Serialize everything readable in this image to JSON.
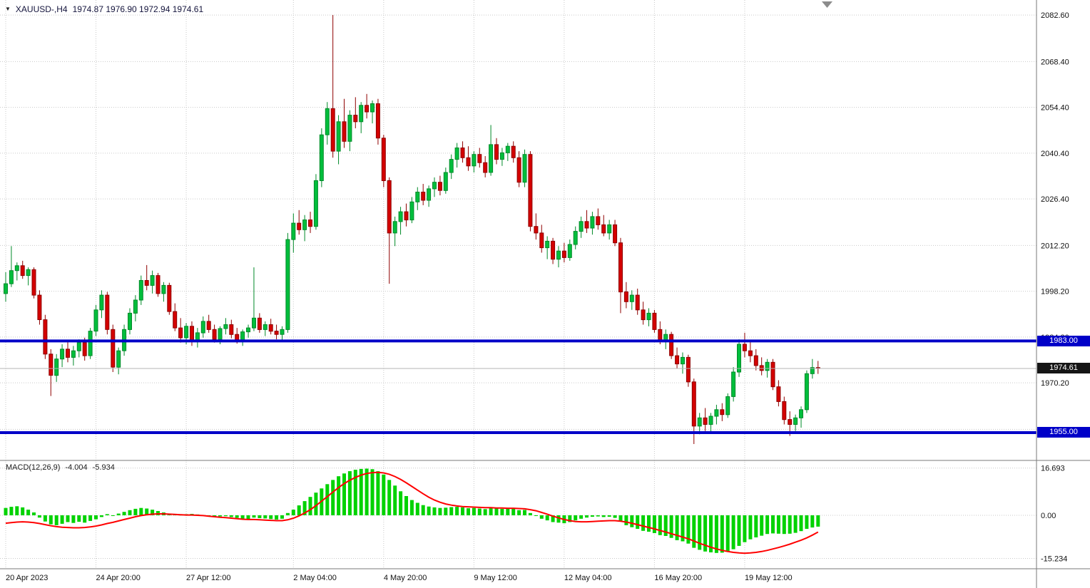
{
  "header": {
    "symbol_period": "XAUUSD-,H4",
    "ohlc_values": "1974.87 1976.90 1972.94 1974.61"
  },
  "macd_panel": {
    "title": "MACD(12,26,9)",
    "main_value": "-4.004",
    "signal_value": "-5.934"
  },
  "levels": {
    "resistance": {
      "label": "1983.00",
      "value": 1983.0
    },
    "last_price": {
      "label": "1974.61",
      "value": 1974.61
    },
    "support": {
      "label": "1955.00",
      "value": 1955.0
    }
  },
  "colors": {
    "bull": "#00BE3C",
    "bull_border": "#008A28",
    "bear": "#D40000",
    "bear_border": "#8F0000",
    "grid": "#C9C9C9",
    "level_line": "#0000C8",
    "macd_histogram": "#00D200",
    "macd_signal": "#FF0000",
    "last_price_line": "#B4B4B4"
  },
  "chart_data": [
    {
      "type": "candlestick",
      "title": "XAUUSD- H4",
      "ylim": [
        1946.5,
        2087.2
      ],
      "price_gridlines": [
        "2082.60",
        "2068.40",
        "2054.40",
        "2040.40",
        "2026.40",
        "2012.20",
        "1998.20",
        "1984.20",
        "1970.20",
        "1956.00"
      ],
      "time_labels": [
        {
          "i": 0,
          "label": "20 Apr 2023"
        },
        {
          "i": 16,
          "label": "24 Apr 20:00"
        },
        {
          "i": 32,
          "label": "27 Apr 12:00"
        },
        {
          "i": 51,
          "label": "2 May 04:00"
        },
        {
          "i": 67,
          "label": "4 May 20:00"
        },
        {
          "i": 83,
          "label": "9 May 12:00"
        },
        {
          "i": 99,
          "label": "12 May 04:00"
        },
        {
          "i": 115,
          "label": "16 May 20:00"
        },
        {
          "i": 131,
          "label": "19 May 12:00"
        }
      ],
      "hlines": [
        {
          "value": 1983.0,
          "label": "1983.00"
        },
        {
          "value": 1955.0,
          "label": "1955.00"
        }
      ],
      "last_price": 1974.61,
      "candles": [
        [
          1997.5,
          2004,
          1995,
          2000.5
        ],
        [
          2000.5,
          2012,
          1999.5,
          2004.5
        ],
        [
          2004.5,
          2007,
          2001.5,
          2006
        ],
        [
          2006,
          2007.5,
          2002,
          2003
        ],
        [
          2003,
          2005.5,
          2000,
          2004.8
        ],
        [
          2004.8,
          2005.5,
          1996,
          1997
        ],
        [
          1997,
          1998.5,
          1988,
          1989.5
        ],
        [
          1989.5,
          1991,
          1977.5,
          1979
        ],
        [
          1979,
          1980.5,
          1966.2,
          1972.5
        ],
        [
          1972.5,
          1979,
          1970.5,
          1977.5
        ],
        [
          1977.5,
          1982,
          1975,
          1980.5
        ],
        [
          1980.5,
          1983,
          1976.5,
          1978
        ],
        [
          1978,
          1981.5,
          1975.5,
          1980
        ],
        [
          1980,
          1983.5,
          1978,
          1982.5
        ],
        [
          1982.5,
          1984,
          1977,
          1978.5
        ],
        [
          1978.5,
          1987,
          1977.5,
          1986
        ],
        [
          1986,
          1994,
          1984.5,
          1992.5
        ],
        [
          1992.5,
          1998.5,
          1990,
          1997
        ],
        [
          1997,
          1998,
          1985,
          1986.5
        ],
        [
          1986.5,
          1988,
          1973.5,
          1975
        ],
        [
          1975,
          1981,
          1972.8,
          1980
        ],
        [
          1980,
          1988,
          1978.5,
          1986.5
        ],
        [
          1986.5,
          1993,
          1985,
          1991.5
        ],
        [
          1991.5,
          1997,
          1989,
          1995.5
        ],
        [
          1995.5,
          2003,
          1994,
          2001.5
        ],
        [
          2001.5,
          2006.2,
          1998.5,
          2000
        ],
        [
          2000,
          2004.5,
          1997.5,
          2003
        ],
        [
          2003,
          2003.8,
          1996.5,
          1997.5
        ],
        [
          1997.5,
          2001,
          1995,
          2000
        ],
        [
          2000,
          2000.8,
          1991,
          1992
        ],
        [
          1992,
          1994.5,
          1986,
          1987
        ],
        [
          1987,
          1990,
          1982.5,
          1984
        ],
        [
          1984,
          1988.5,
          1982,
          1987.5
        ],
        [
          1987.5,
          1989,
          1981.5,
          1982.8
        ],
        [
          1982.8,
          1987,
          1981,
          1985.5
        ],
        [
          1985.5,
          1990.5,
          1984,
          1989
        ],
        [
          1989,
          1991,
          1985.5,
          1986.5
        ],
        [
          1986.5,
          1988,
          1982.5,
          1983.5
        ],
        [
          1983.5,
          1987.5,
          1982,
          1986.8
        ],
        [
          1986.8,
          1990,
          1985,
          1988
        ],
        [
          1988,
          1989.5,
          1983.8,
          1985
        ],
        [
          1985,
          1987,
          1982.2,
          1983
        ],
        [
          1983,
          1986.5,
          1981.5,
          1985.8
        ],
        [
          1985.8,
          1988,
          1984,
          1987
        ],
        [
          1987,
          2005.5,
          1986,
          1990
        ],
        [
          1990,
          1991.5,
          1985.5,
          1986.5
        ],
        [
          1986.5,
          1989,
          1984.5,
          1988
        ],
        [
          1988,
          1989.8,
          1985,
          1986
        ],
        [
          1986,
          1988,
          1983.5,
          1985
        ],
        [
          1985,
          1987.5,
          1983,
          1986.5
        ],
        [
          1986.5,
          2016,
          1985.5,
          2014
        ],
        [
          2014,
          2022,
          2010,
          2019
        ],
        [
          2019,
          2023,
          2015.5,
          2017
        ],
        [
          2017,
          2021.5,
          2013.5,
          2020
        ],
        [
          2020,
          2022.5,
          2016,
          2018
        ],
        [
          2018,
          2034,
          2017,
          2032
        ],
        [
          2032,
          2048,
          2030,
          2046
        ],
        [
          2046,
          2056,
          2043,
          2054
        ],
        [
          2054,
          2082.6,
          2039,
          2041
        ],
        [
          2041,
          2052,
          2037,
          2050
        ],
        [
          2050,
          2057,
          2042,
          2044
        ],
        [
          2044,
          2053.5,
          2041,
          2052
        ],
        [
          2052,
          2057.5,
          2048,
          2050
        ],
        [
          2050,
          2056,
          2046.5,
          2055
        ],
        [
          2055,
          2058.5,
          2051,
          2053
        ],
        [
          2053,
          2056.5,
          2049.5,
          2055.5
        ],
        [
          2055.5,
          2057,
          2043,
          2045
        ],
        [
          2045,
          2046,
          2030,
          2032
        ],
        [
          2032,
          2033,
          2000.5,
          2016
        ],
        [
          2016,
          2021,
          2012,
          2019.5
        ],
        [
          2019.5,
          2024,
          2015.5,
          2022.5
        ],
        [
          2022.5,
          2025,
          2018,
          2020
        ],
        [
          2020,
          2027,
          2019,
          2025.5
        ],
        [
          2025.5,
          2030,
          2023,
          2028.5
        ],
        [
          2028.5,
          2031,
          2024.5,
          2026
        ],
        [
          2026,
          2030.5,
          2024,
          2029.5
        ],
        [
          2029.5,
          2033,
          2027,
          2031.5
        ],
        [
          2031.5,
          2033.5,
          2027.5,
          2029
        ],
        [
          2029,
          2036,
          2028,
          2034.5
        ],
        [
          2034.5,
          2040,
          2032.5,
          2038.5
        ],
        [
          2038.5,
          2043.5,
          2036,
          2042
        ],
        [
          2042,
          2044,
          2037.5,
          2039
        ],
        [
          2039,
          2042.5,
          2035,
          2036.5
        ],
        [
          2036.5,
          2041,
          2034.5,
          2040
        ],
        [
          2040,
          2042,
          2036,
          2037.5
        ],
        [
          2037.5,
          2039.5,
          2033,
          2034.5
        ],
        [
          2034.5,
          2049,
          2033.5,
          2043
        ],
        [
          2043,
          2045,
          2037,
          2038.5
        ],
        [
          2038.5,
          2042,
          2036.5,
          2040.5
        ],
        [
          2040.5,
          2043.5,
          2038,
          2042.5
        ],
        [
          2042.5,
          2044,
          2037.5,
          2039
        ],
        [
          2039,
          2041,
          2030,
          2031.5
        ],
        [
          2031.5,
          2041.5,
          2030,
          2040
        ],
        [
          2040,
          2041,
          2016.5,
          2018
        ],
        [
          2018,
          2022,
          2014,
          2016
        ],
        [
          2016,
          2018.5,
          2010,
          2011.5
        ],
        [
          2011.5,
          2015,
          2008,
          2013.5
        ],
        [
          2013.5,
          2014.5,
          2006.5,
          2008
        ],
        [
          2008,
          2012,
          2005.5,
          2010.5
        ],
        [
          2010.5,
          2013,
          2007,
          2008.5
        ],
        [
          2008.5,
          2014,
          2007.5,
          2012.5
        ],
        [
          2012.5,
          2018,
          2011,
          2016.5
        ],
        [
          2016.5,
          2021,
          2014.5,
          2019.5
        ],
        [
          2019.5,
          2023,
          2016,
          2017.5
        ],
        [
          2017.5,
          2022.5,
          2015.5,
          2021
        ],
        [
          2021,
          2023.5,
          2017,
          2018.5
        ],
        [
          2018.5,
          2021.5,
          2015,
          2016
        ],
        [
          2016,
          2020,
          2014,
          2018.5
        ],
        [
          2018.5,
          2020,
          2012,
          2013
        ],
        [
          2013,
          2014.5,
          1991.5,
          1998
        ],
        [
          1998,
          2001,
          1993,
          1995
        ],
        [
          1995,
          1998.5,
          1992.5,
          1997
        ],
        [
          1997,
          1999,
          1991,
          1992.5
        ],
        [
          1992.5,
          1995,
          1988,
          1989.5
        ],
        [
          1989.5,
          1993,
          1987.5,
          1991.5
        ],
        [
          1991.5,
          1992.5,
          1985.5,
          1986.5
        ],
        [
          1986.5,
          1989,
          1982,
          1983
        ],
        [
          1983,
          1986.5,
          1980.5,
          1985
        ],
        [
          1985,
          1985.8,
          1977.5,
          1978.5
        ],
        [
          1978.5,
          1981,
          1974.5,
          1976
        ],
        [
          1976,
          1979.5,
          1973,
          1978
        ],
        [
          1978,
          1978.8,
          1969,
          1970.5
        ],
        [
          1970.5,
          1971.5,
          1951.5,
          1957
        ],
        [
          1957,
          1961,
          1954.5,
          1959.5
        ],
        [
          1959.5,
          1962.5,
          1955.5,
          1957.5
        ],
        [
          1957.5,
          1961,
          1955,
          1960
        ],
        [
          1960,
          1963.5,
          1957.5,
          1962
        ],
        [
          1962,
          1964,
          1958.5,
          1960.5
        ],
        [
          1960.5,
          1967,
          1959.5,
          1966
        ],
        [
          1966,
          1975,
          1964.5,
          1973.5
        ],
        [
          1973.5,
          1983.5,
          1972,
          1982
        ],
        [
          1982,
          1985.5,
          1978,
          1980
        ],
        [
          1980,
          1983,
          1976.5,
          1978.5
        ],
        [
          1978.5,
          1980.5,
          1974,
          1975.5
        ],
        [
          1975.5,
          1978,
          1972.5,
          1974
        ],
        [
          1974,
          1977.5,
          1971.8,
          1976.5
        ],
        [
          1976.5,
          1977.5,
          1968,
          1969
        ],
        [
          1969,
          1971,
          1963,
          1964.5
        ],
        [
          1964.5,
          1966,
          1957.5,
          1959
        ],
        [
          1959,
          1961.5,
          1954,
          1957.5
        ],
        [
          1957.5,
          1960.5,
          1955.5,
          1959.5
        ],
        [
          1959.5,
          1963,
          1956.5,
          1962
        ],
        [
          1962,
          1974,
          1961,
          1973
        ],
        [
          1973,
          1977.5,
          1971.5,
          1974.87
        ],
        [
          1974.87,
          1976.9,
          1972.94,
          1974.61
        ]
      ]
    },
    {
      "type": "macd",
      "title": "MACD(12,26,9)",
      "ylim": [
        -18.9,
        19.4
      ],
      "gridlines": [
        "16.693",
        "0.00",
        "-15.234"
      ],
      "histogram": [
        2.6,
        3.0,
        3.2,
        2.8,
        2.0,
        1.0,
        -0.8,
        -2.2,
        -3.2,
        -3.5,
        -3.0,
        -2.4,
        -2.7,
        -2.3,
        -2.6,
        -2.0,
        -1.4,
        -0.6,
        0.4,
        -0.2,
        0.6,
        1.2,
        1.8,
        2.3,
        2.6,
        2.4,
        2.0,
        1.5,
        1.0,
        0.6,
        0.3,
        0.2,
        0.4,
        0.5,
        0.3,
        0.1,
        -0.2,
        -0.5,
        -0.4,
        -0.3,
        -0.6,
        -0.9,
        -1.2,
        -1.4,
        -0.8,
        -1.0,
        -1.1,
        -1.3,
        -1.5,
        -1.2,
        0.8,
        2.0,
        3.5,
        5.0,
        6.5,
        8.0,
        9.5,
        11.0,
        12.5,
        13.8,
        14.8,
        15.6,
        16.1,
        16.4,
        16.5,
        16.3,
        15.6,
        14.4,
        12.5,
        10.5,
        8.5,
        6.8,
        5.4,
        4.4,
        3.6,
        3.1,
        2.8,
        2.6,
        2.7,
        2.9,
        3.0,
        2.8,
        2.5,
        2.6,
        2.4,
        2.2,
        2.6,
        2.4,
        2.3,
        2.5,
        2.3,
        1.8,
        1.9,
        0.8,
        -0.2,
        -1.2,
        -1.8,
        -2.4,
        -2.6,
        -2.8,
        -2.4,
        -1.8,
        -1.2,
        -0.8,
        -0.5,
        -0.4,
        -0.6,
        -0.5,
        -0.9,
        -2.2,
        -3.5,
        -4.2,
        -4.8,
        -5.5,
        -5.8,
        -6.3,
        -7.0,
        -7.3,
        -8.0,
        -8.8,
        -9.2,
        -10.0,
        -11.5,
        -12.2,
        -12.8,
        -13.1,
        -13.3,
        -13.2,
        -12.8,
        -12.0,
        -10.8,
        -9.5,
        -8.5,
        -7.8,
        -7.2,
        -6.6,
        -6.4,
        -6.5,
        -6.6,
        -6.5,
        -6.2,
        -5.6,
        -4.8,
        -4.3,
        -4.004
      ],
      "signal": [
        -2.8,
        -2.6,
        -2.4,
        -2.3,
        -2.4,
        -2.6,
        -2.9,
        -3.3,
        -3.7,
        -4.0,
        -4.2,
        -4.3,
        -4.4,
        -4.4,
        -4.3,
        -4.1,
        -3.8,
        -3.4,
        -2.9,
        -2.5,
        -2.0,
        -1.5,
        -1.0,
        -0.5,
        -0.1,
        0.2,
        0.4,
        0.5,
        0.5,
        0.4,
        0.3,
        0.2,
        0.1,
        0.1,
        0.0,
        -0.1,
        -0.3,
        -0.5,
        -0.7,
        -0.8,
        -1.0,
        -1.2,
        -1.4,
        -1.5,
        -1.5,
        -1.6,
        -1.7,
        -1.8,
        -1.9,
        -1.9,
        -1.6,
        -1.0,
        -0.2,
        0.8,
        2.0,
        3.4,
        5.0,
        6.6,
        8.2,
        9.8,
        11.2,
        12.4,
        13.4,
        14.2,
        14.8,
        15.1,
        15.2,
        15.0,
        14.5,
        13.7,
        12.7,
        11.5,
        10.2,
        8.9,
        7.6,
        6.4,
        5.4,
        4.6,
        4.0,
        3.6,
        3.3,
        3.1,
        3.0,
        2.9,
        2.8,
        2.7,
        2.7,
        2.6,
        2.6,
        2.5,
        2.5,
        2.4,
        2.3,
        2.0,
        1.6,
        1.0,
        0.4,
        -0.3,
        -0.9,
        -1.5,
        -1.9,
        -2.2,
        -2.3,
        -2.3,
        -2.2,
        -2.1,
        -2.0,
        -1.9,
        -1.9,
        -2.1,
        -2.4,
        -2.8,
        -3.3,
        -3.8,
        -4.3,
        -4.8,
        -5.4,
        -5.9,
        -6.5,
        -7.1,
        -7.7,
        -8.3,
        -9.1,
        -9.9,
        -10.6,
        -11.3,
        -11.9,
        -12.4,
        -12.8,
        -13.1,
        -13.3,
        -13.4,
        -13.3,
        -13.1,
        -12.8,
        -12.4,
        -11.9,
        -11.4,
        -10.8,
        -10.2,
        -9.5,
        -8.8,
        -8.0,
        -7.0,
        -5.934
      ]
    }
  ]
}
